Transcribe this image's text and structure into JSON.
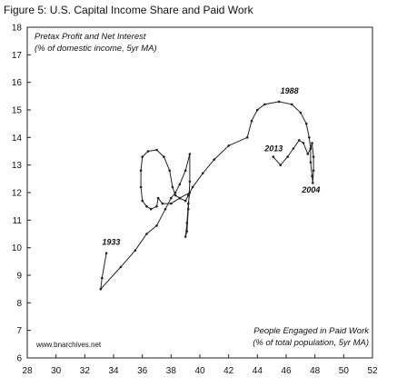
{
  "figure_title": "Figure 5: U.S. Capital Income Share and Paid Work",
  "chart_data": {
    "type": "line",
    "ylabel_lines": [
      "Pretax Profit and Net Interest",
      "(% of domestic income, 5yr MA)"
    ],
    "xlabel_lines": [
      "People Engaged in Paid Work",
      "(% of total population, 5yr MA)"
    ],
    "source": "www.bnarchives.net",
    "xlim": [
      28,
      52
    ],
    "ylim": [
      6,
      18
    ],
    "x_ticks": [
      28,
      30,
      32,
      34,
      36,
      38,
      40,
      42,
      44,
      46,
      48,
      50,
      52
    ],
    "y_ticks": [
      6,
      7,
      8,
      9,
      10,
      11,
      12,
      13,
      14,
      15,
      16,
      17,
      18
    ],
    "annotations": [
      {
        "text": "1933",
        "x": 33.2,
        "y": 10.1
      },
      {
        "text": "1988",
        "x": 45.6,
        "y": 15.6
      },
      {
        "text": "2013",
        "x": 44.5,
        "y": 13.5
      },
      {
        "text": "2004",
        "x": 47.1,
        "y": 12.0
      }
    ],
    "series": [
      {
        "points": [
          [
            33.5,
            9.8
          ],
          [
            33.2,
            8.9
          ],
          [
            33.1,
            8.5
          ],
          [
            34.5,
            9.3
          ],
          [
            35.5,
            9.9
          ],
          [
            36.3,
            10.5
          ],
          [
            37.0,
            10.8
          ],
          [
            37.6,
            11.4
          ],
          [
            38.0,
            11.8
          ],
          [
            38.3,
            12.0
          ],
          [
            38.6,
            12.3
          ],
          [
            39.0,
            12.8
          ],
          [
            39.3,
            13.4
          ],
          [
            39.3,
            12.4
          ],
          [
            39.2,
            11.4
          ],
          [
            39.1,
            10.6
          ],
          [
            39.0,
            10.4
          ],
          [
            39.1,
            10.9
          ],
          [
            39.2,
            11.6
          ],
          [
            39.3,
            12.0
          ],
          [
            38.6,
            11.8
          ],
          [
            38.0,
            11.6
          ],
          [
            37.4,
            11.6
          ],
          [
            37.1,
            11.8
          ],
          [
            37.0,
            11.5
          ],
          [
            36.6,
            11.4
          ],
          [
            36.3,
            11.5
          ],
          [
            36.0,
            11.7
          ],
          [
            35.9,
            12.2
          ],
          [
            35.9,
            12.8
          ],
          [
            36.0,
            13.3
          ],
          [
            36.4,
            13.5
          ],
          [
            37.0,
            13.55
          ],
          [
            37.5,
            13.3
          ],
          [
            37.9,
            12.8
          ],
          [
            38.1,
            12.2
          ],
          [
            38.3,
            11.9
          ],
          [
            38.6,
            11.8
          ],
          [
            39.0,
            11.7
          ],
          [
            39.2,
            11.9
          ],
          [
            39.5,
            12.2
          ],
          [
            40.2,
            12.7
          ],
          [
            41.0,
            13.2
          ],
          [
            42.0,
            13.7
          ],
          [
            43.3,
            14.0
          ],
          [
            43.6,
            14.6
          ],
          [
            44.0,
            15.0
          ],
          [
            44.5,
            15.2
          ],
          [
            45.5,
            15.3
          ],
          [
            46.4,
            15.2
          ],
          [
            47.0,
            14.9
          ],
          [
            47.4,
            14.5
          ],
          [
            47.6,
            14.0
          ],
          [
            47.7,
            13.6
          ],
          [
            47.7,
            13.1
          ],
          [
            47.8,
            12.6
          ],
          [
            47.85,
            12.35
          ],
          [
            47.9,
            12.8
          ],
          [
            47.9,
            13.3
          ],
          [
            47.8,
            13.8
          ],
          [
            47.7,
            13.6
          ],
          [
            47.5,
            13.4
          ],
          [
            47.2,
            13.8
          ],
          [
            46.9,
            13.9
          ],
          [
            46.5,
            13.6
          ],
          [
            46.1,
            13.3
          ],
          [
            45.6,
            13.0
          ],
          [
            45.1,
            13.3
          ]
        ]
      }
    ]
  }
}
